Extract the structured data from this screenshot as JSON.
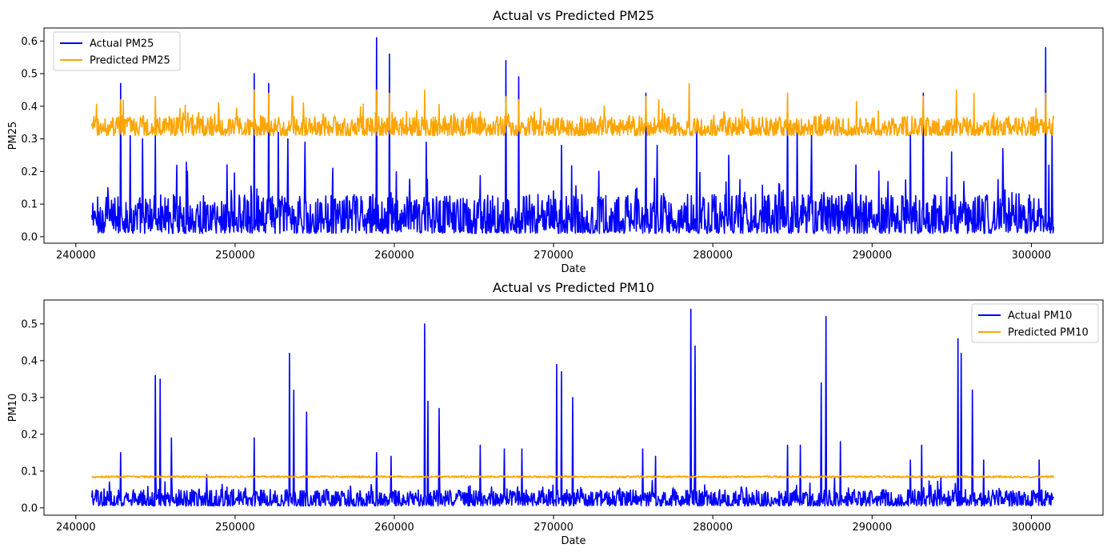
{
  "chart_data": [
    {
      "type": "line",
      "title": "Actual vs Predicted PM25",
      "xlabel": "Date",
      "ylabel": "PM25",
      "xlim": [
        238000,
        304500
      ],
      "ylim": [
        -0.02,
        0.64
      ],
      "xticks": [
        240000,
        250000,
        260000,
        270000,
        280000,
        290000,
        300000
      ],
      "yticks": [
        0.0,
        0.1,
        0.2,
        0.3,
        0.4,
        0.5,
        0.6
      ],
      "ytick_labels": [
        "0.0",
        "0.1",
        "0.2",
        "0.3",
        "0.4",
        "0.5",
        "0.6"
      ],
      "legend_position": "upper left",
      "series": [
        {
          "name": "Actual PM25",
          "color": "#0000ff",
          "x_range": [
            241000,
            301400
          ],
          "baseline_low": 0.01,
          "baseline_high": 0.13,
          "spikes": [
            [
              242800,
              0.47
            ],
            [
              243400,
              0.31
            ],
            [
              244200,
              0.3
            ],
            [
              245000,
              0.31
            ],
            [
              247000,
              0.2
            ],
            [
              249500,
              0.22
            ],
            [
              251200,
              0.5
            ],
            [
              252100,
              0.47
            ],
            [
              252700,
              0.32
            ],
            [
              253300,
              0.3
            ],
            [
              254400,
              0.29
            ],
            [
              258900,
              0.61
            ],
            [
              259700,
              0.56
            ],
            [
              262000,
              0.29
            ],
            [
              267000,
              0.54
            ],
            [
              267800,
              0.49
            ],
            [
              270500,
              0.28
            ],
            [
              275800,
              0.44
            ],
            [
              276500,
              0.28
            ],
            [
              279000,
              0.34
            ],
            [
              281000,
              0.25
            ],
            [
              284700,
              0.41
            ],
            [
              285300,
              0.34
            ],
            [
              286200,
              0.31
            ],
            [
              289000,
              0.22
            ],
            [
              292400,
              0.32
            ],
            [
              293200,
              0.44
            ],
            [
              295000,
              0.26
            ],
            [
              298200,
              0.27
            ],
            [
              300900,
              0.58
            ],
            [
              301300,
              0.32
            ]
          ]
        },
        {
          "name": "Predicted PM25",
          "color": "#ffa500",
          "x_range": [
            241000,
            301400
          ],
          "baseline_low": 0.31,
          "baseline_high": 0.37,
          "spikes": [
            [
              242800,
              0.42
            ],
            [
              245000,
              0.43
            ],
            [
              251200,
              0.45
            ],
            [
              252100,
              0.44
            ],
            [
              253600,
              0.43
            ],
            [
              254300,
              0.41
            ],
            [
              258900,
              0.45
            ],
            [
              259700,
              0.44
            ],
            [
              261900,
              0.45
            ],
            [
              267000,
              0.43
            ],
            [
              267800,
              0.42
            ],
            [
              275800,
              0.43
            ],
            [
              276600,
              0.42
            ],
            [
              278500,
              0.47
            ],
            [
              284700,
              0.44
            ],
            [
              293200,
              0.43
            ],
            [
              295300,
              0.45
            ],
            [
              296400,
              0.44
            ],
            [
              300900,
              0.44
            ]
          ]
        }
      ]
    },
    {
      "type": "line",
      "title": "Actual vs Predicted PM10",
      "xlabel": "Date",
      "ylabel": "PM10",
      "xlim": [
        238000,
        304500
      ],
      "ylim": [
        -0.02,
        0.565
      ],
      "xticks": [
        240000,
        250000,
        260000,
        270000,
        280000,
        290000,
        300000
      ],
      "yticks": [
        0.0,
        0.1,
        0.2,
        0.3,
        0.4,
        0.5
      ],
      "ytick_labels": [
        "0.0",
        "0.1",
        "0.2",
        "0.3",
        "0.4",
        "0.5"
      ],
      "legend_position": "upper right",
      "series": [
        {
          "name": "Actual PM10",
          "color": "#0000ff",
          "x_range": [
            241000,
            301400
          ],
          "baseline_low": 0.005,
          "baseline_high": 0.05,
          "spikes": [
            [
              242800,
              0.15
            ],
            [
              245000,
              0.36
            ],
            [
              245300,
              0.35
            ],
            [
              246000,
              0.19
            ],
            [
              248200,
              0.09
            ],
            [
              251200,
              0.19
            ],
            [
              253400,
              0.42
            ],
            [
              253700,
              0.32
            ],
            [
              254500,
              0.26
            ],
            [
              258900,
              0.15
            ],
            [
              259800,
              0.14
            ],
            [
              261900,
              0.5
            ],
            [
              262100,
              0.29
            ],
            [
              262800,
              0.27
            ],
            [
              265400,
              0.17
            ],
            [
              266900,
              0.16
            ],
            [
              268000,
              0.16
            ],
            [
              270200,
              0.39
            ],
            [
              270500,
              0.37
            ],
            [
              271200,
              0.3
            ],
            [
              275600,
              0.16
            ],
            [
              276400,
              0.14
            ],
            [
              278600,
              0.54
            ],
            [
              278900,
              0.44
            ],
            [
              284700,
              0.17
            ],
            [
              285500,
              0.17
            ],
            [
              286800,
              0.34
            ],
            [
              287100,
              0.52
            ],
            [
              288000,
              0.18
            ],
            [
              292400,
              0.13
            ],
            [
              293100,
              0.17
            ],
            [
              295400,
              0.46
            ],
            [
              295600,
              0.42
            ],
            [
              296300,
              0.32
            ],
            [
              297000,
              0.13
            ],
            [
              300500,
              0.13
            ]
          ]
        },
        {
          "name": "Predicted PM10",
          "color": "#ffa500",
          "x_range": [
            241000,
            301400
          ],
          "baseline_low": 0.082,
          "baseline_high": 0.087,
          "spikes": []
        }
      ]
    }
  ]
}
